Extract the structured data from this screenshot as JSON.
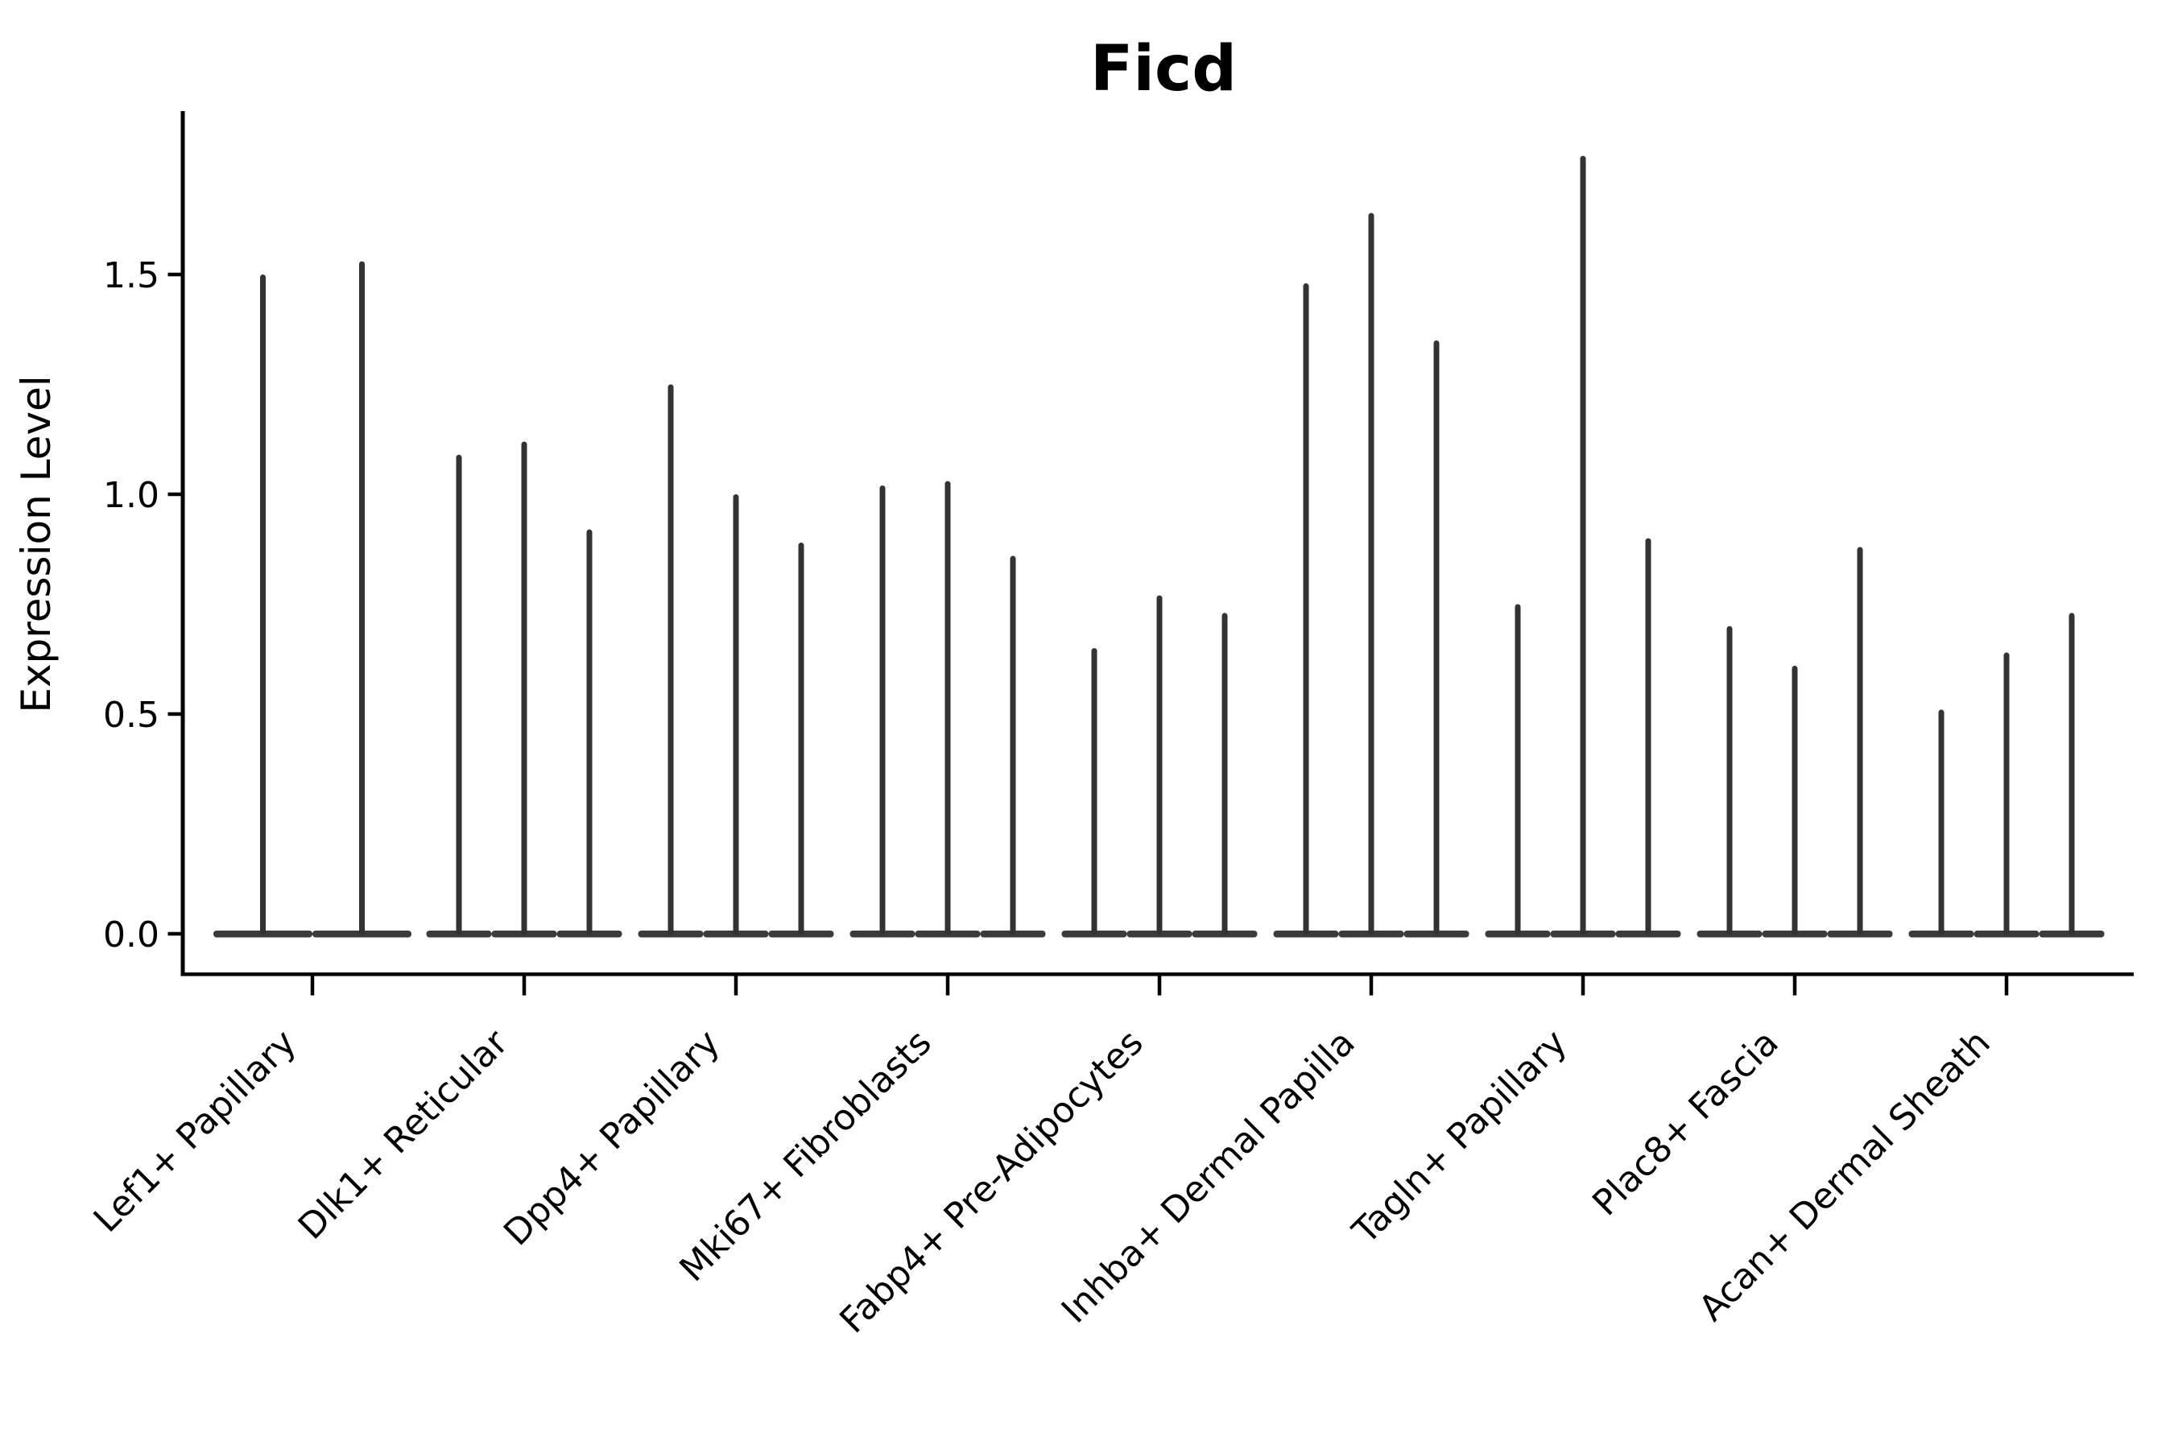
{
  "figure": {
    "title": "Ficd",
    "ylabel": "Expression Level"
  },
  "colors": {
    "violin": "#333333",
    "axis": "#000000",
    "background": "#ffffff"
  },
  "chart_data": {
    "type": "violin",
    "title": "Ficd",
    "xlabel": "",
    "ylabel": "Expression Level",
    "ylim": [
      -0.09,
      1.87
    ],
    "yticks": [
      0.0,
      0.5,
      1.0,
      1.5
    ],
    "ytick_labels": [
      "0.0",
      "0.5",
      "1.0",
      "1.5"
    ],
    "grid": false,
    "legend_position": "none",
    "x_tick_rotation": 45,
    "categories": [
      "Lef1+ Papillary",
      "Dlk1+ Reticular",
      "Dpp4+ Papillary",
      "Mki67+ Fibroblasts",
      "Fabp4+ Pre-Adipocytes",
      "Inhba+ Dermal Papilla",
      "Tagln+ Papillary",
      "Plac8+ Fascia",
      "Acan+ Dermal Sheath"
    ],
    "groups": [
      {
        "label": "Lef1+ Papillary",
        "spike_heights": [
          1.5,
          1.53
        ]
      },
      {
        "label": "Dlk1+ Reticular",
        "spike_heights": [
          1.09,
          1.12,
          0.92
        ]
      },
      {
        "label": "Dpp4+ Papillary",
        "spike_heights": [
          1.25,
          1.0,
          0.89
        ]
      },
      {
        "label": "Mki67+ Fibroblasts",
        "spike_heights": [
          1.02,
          1.03,
          0.86
        ]
      },
      {
        "label": "Fabp4+ Pre-Adipocytes",
        "spike_heights": [
          0.65,
          0.77,
          0.73
        ]
      },
      {
        "label": "Inhba+ Dermal Papilla",
        "spike_heights": [
          1.48,
          1.64,
          1.35
        ]
      },
      {
        "label": "Tagln+ Papillary",
        "spike_heights": [
          0.75,
          1.77,
          0.9
        ]
      },
      {
        "label": "Plac8+ Fascia",
        "spike_heights": [
          0.7,
          0.61,
          0.88
        ]
      },
      {
        "label": "Acan+ Dermal Sheath",
        "spike_heights": [
          0.51,
          0.64,
          0.73
        ]
      }
    ],
    "description": "Violin plot of Ficd expression; violins are near-zero-width spikes rising from flat bodies at expression 0."
  }
}
